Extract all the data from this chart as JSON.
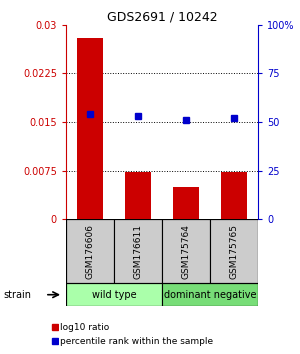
{
  "title": "GDS2691 / 10242",
  "samples": [
    "GSM176606",
    "GSM176611",
    "GSM175764",
    "GSM175765"
  ],
  "bar_values": [
    0.028,
    0.0073,
    0.005,
    0.0073
  ],
  "percentile_values": [
    54,
    53,
    51,
    52
  ],
  "bar_color": "#cc0000",
  "dot_color": "#0000cc",
  "ylim_left": [
    0,
    0.03
  ],
  "ylim_right": [
    0,
    100
  ],
  "yticks_left": [
    0,
    0.0075,
    0.015,
    0.0225,
    0.03
  ],
  "ytick_labels_left": [
    "0",
    "0.0075",
    "0.015",
    "0.0225",
    "0.03"
  ],
  "yticks_right": [
    0,
    25,
    50,
    75,
    100
  ],
  "ytick_labels_right": [
    "0",
    "25",
    "50",
    "75",
    "100%"
  ],
  "groups": [
    {
      "label": "wild type",
      "samples": [
        0,
        1
      ],
      "color": "#aaffaa"
    },
    {
      "label": "dominant negative",
      "samples": [
        2,
        3
      ],
      "color": "#77dd77"
    }
  ],
  "legend_items": [
    {
      "label": "log10 ratio",
      "color": "#cc0000"
    },
    {
      "label": "percentile rank within the sample",
      "color": "#0000cc"
    }
  ],
  "strain_label": "strain",
  "background_color": "#ffffff",
  "sample_box_color": "#cccccc",
  "bar_width": 0.55,
  "dot_size": 5
}
